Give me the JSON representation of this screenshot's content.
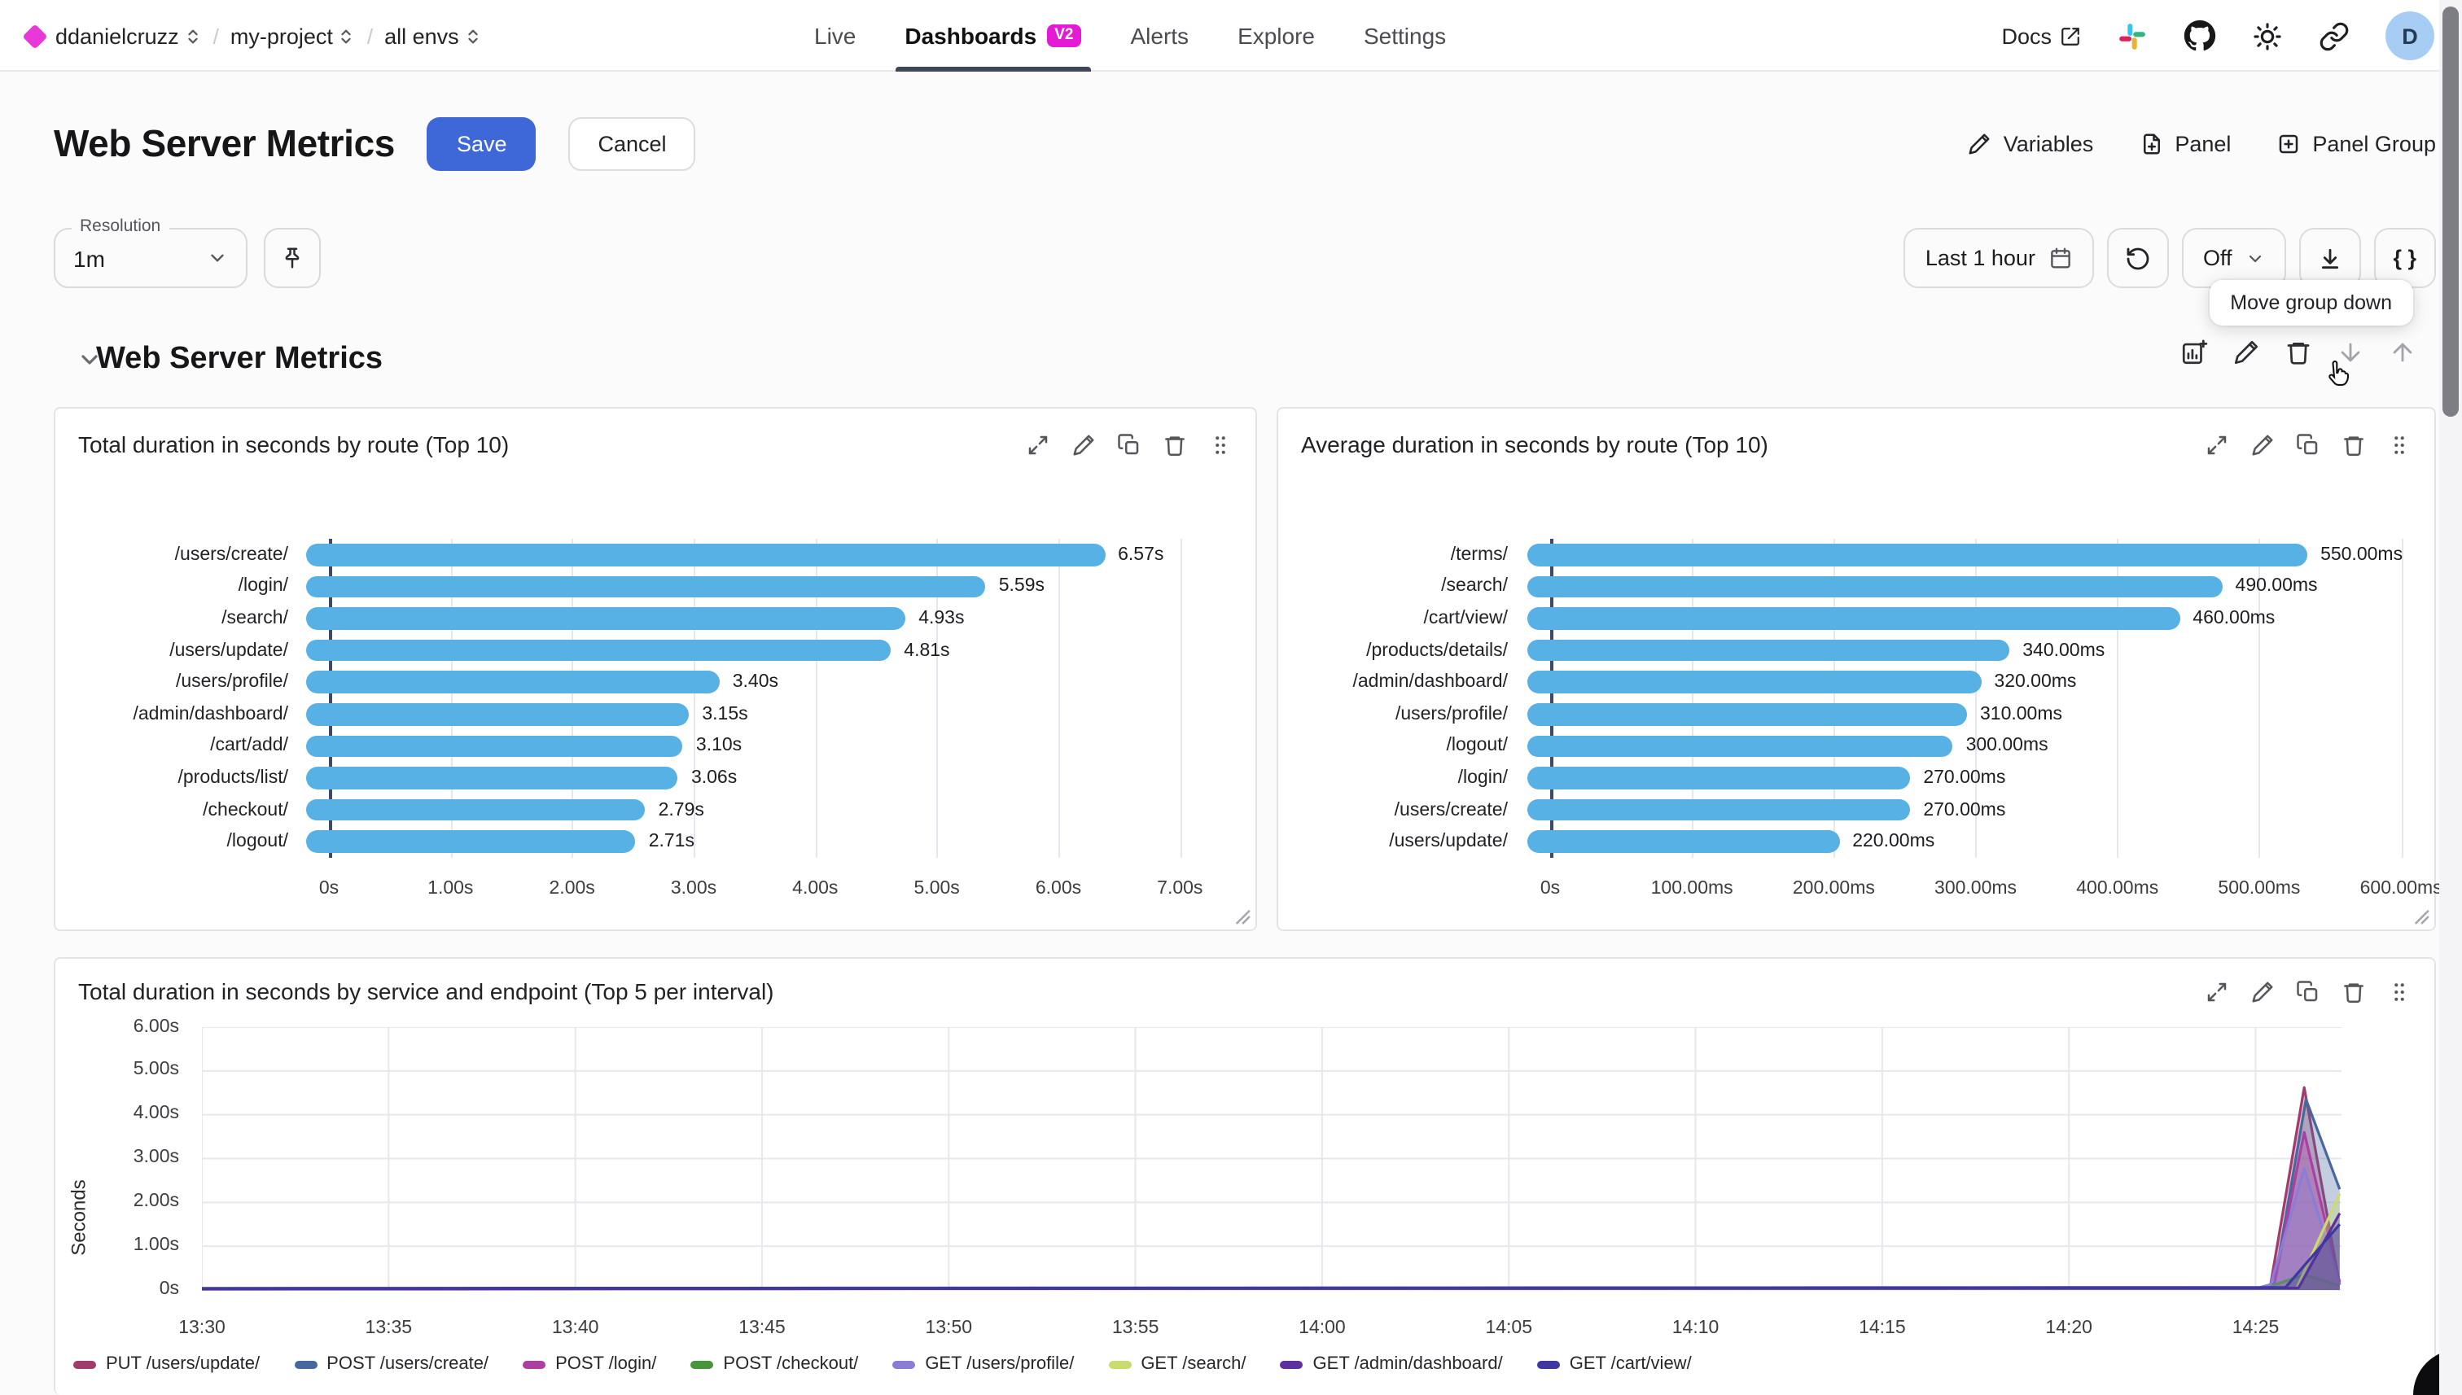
{
  "header": {
    "org": "ddanielcruzz",
    "project": "my-project",
    "env": "all envs",
    "slash": "/",
    "nav": [
      {
        "label": "Live"
      },
      {
        "label": "Dashboards",
        "badge": "V2"
      },
      {
        "label": "Alerts"
      },
      {
        "label": "Explore"
      },
      {
        "label": "Settings"
      }
    ],
    "docs_label": "Docs",
    "avatar_initial": "D"
  },
  "toolbar": {
    "title": "Web Server Metrics",
    "save_label": "Save",
    "cancel_label": "Cancel",
    "variables_label": "Variables",
    "panel_label": "Panel",
    "panel_group_label": "Panel Group"
  },
  "controls": {
    "resolution_label": "Resolution",
    "resolution_value": "1m",
    "time_range_label": "Last 1 hour",
    "auto_refresh_value": "Off",
    "braces_label": "{ }",
    "tooltip_text": "Move group down"
  },
  "group": {
    "title": "Web Server Metrics"
  },
  "colors": {
    "accent_blue": "#3e68d8",
    "badge_magenta": "#e41ad5",
    "brand_magenta": "#e838d8",
    "bar_blue": "#58b1e4"
  },
  "chart_data": [
    {
      "type": "bar",
      "orientation": "horizontal",
      "title": "Total duration in seconds by route (Top 10)",
      "categories": [
        "/users/create/",
        "/login/",
        "/search/",
        "/users/update/",
        "/users/profile/",
        "/admin/dashboard/",
        "/cart/add/",
        "/products/list/",
        "/checkout/",
        "/logout/"
      ],
      "values": [
        6.57,
        5.59,
        4.93,
        4.81,
        3.4,
        3.15,
        3.1,
        3.06,
        2.79,
        2.71
      ],
      "value_labels": [
        "6.57s",
        "5.59s",
        "4.93s",
        "4.81s",
        "3.40s",
        "3.15s",
        "3.10s",
        "3.06s",
        "2.79s",
        "2.71s"
      ],
      "x_tick_labels": [
        "0s",
        "1.00s",
        "2.00s",
        "3.00s",
        "4.00s",
        "5.00s",
        "6.00s",
        "7.00s"
      ],
      "x_tick_values": [
        0,
        1,
        2,
        3,
        4,
        5,
        6,
        7
      ],
      "xmax": 7.5,
      "bar_color": "#58b1e4",
      "grid": true
    },
    {
      "type": "bar",
      "orientation": "horizontal",
      "title": "Average duration in seconds by route (Top 10)",
      "categories": [
        "/terms/",
        "/search/",
        "/cart/view/",
        "/products/details/",
        "/admin/dashboard/",
        "/users/profile/",
        "/logout/",
        "/login/",
        "/users/create/",
        "/users/update/"
      ],
      "values": [
        550,
        490,
        460,
        340,
        320,
        310,
        300,
        270,
        270,
        220
      ],
      "value_labels": [
        "550.00ms",
        "490.00ms",
        "460.00ms",
        "340.00ms",
        "320.00ms",
        "310.00ms",
        "300.00ms",
        "270.00ms",
        "270.00ms",
        "220.00ms"
      ],
      "x_tick_labels": [
        "0s",
        "100.00ms",
        "200.00ms",
        "300.00ms",
        "400.00ms",
        "500.00ms",
        "600.00ms"
      ],
      "x_tick_values": [
        0,
        100,
        200,
        300,
        400,
        500,
        600
      ],
      "xmax": 620,
      "bar_color": "#58b1e4",
      "grid": true
    },
    {
      "type": "line",
      "title": "Total duration in seconds by service and endpoint (Top 5 per interval)",
      "ylabel": "Seconds",
      "y_tick_labels": [
        "0s",
        "1.00s",
        "2.00s",
        "3.00s",
        "4.00s",
        "5.00s",
        "6.00s"
      ],
      "y_tick_values": [
        0,
        1,
        2,
        3,
        4,
        5,
        6
      ],
      "ylim": [
        0,
        6
      ],
      "x_tick_labels": [
        "13:30",
        "13:35",
        "13:40",
        "13:45",
        "13:50",
        "13:55",
        "14:00",
        "14:05",
        "14:10",
        "14:15",
        "14:20",
        "14:25"
      ],
      "x_tick_minutes": [
        0,
        5,
        10,
        15,
        20,
        25,
        30,
        35,
        40,
        45,
        50,
        55
      ],
      "xmax_minutes": 57.3,
      "grid": true,
      "legend_position": "bottom",
      "series": [
        {
          "name": "PUT /users/update/",
          "color": "#a13b6e",
          "points": [
            [
              0,
              0.03
            ],
            [
              55,
              0.03
            ],
            [
              55.4,
              0.12
            ],
            [
              56.3,
              4.62
            ],
            [
              57.25,
              0.12
            ]
          ]
        },
        {
          "name": "POST /users/create/",
          "color": "#46689e",
          "points": [
            [
              0,
              0.03
            ],
            [
              55,
              0.03
            ],
            [
              55.5,
              0.15
            ],
            [
              56.35,
              4.35
            ],
            [
              57.25,
              2.3
            ]
          ]
        },
        {
          "name": "POST /login/",
          "color": "#ab3fa4",
          "points": [
            [
              0,
              0.03
            ],
            [
              55,
              0.03
            ],
            [
              55.5,
              0.12
            ],
            [
              56.3,
              3.6
            ],
            [
              57.25,
              0.18
            ]
          ]
        },
        {
          "name": "POST /checkout/",
          "color": "#47963a",
          "points": [
            [
              0,
              0.03
            ],
            [
              55.2,
              0.03
            ],
            [
              56.3,
              0.35
            ],
            [
              57.25,
              0.1
            ]
          ]
        },
        {
          "name": "GET /users/profile/",
          "color": "#8b7cd8",
          "points": [
            [
              0,
              0.03
            ],
            [
              55,
              0.03
            ],
            [
              55.4,
              0.12
            ],
            [
              56.3,
              2.77
            ],
            [
              57.25,
              0.12
            ]
          ]
        },
        {
          "name": "GET /search/",
          "color": "#cbdc6e",
          "points": [
            [
              0,
              0.02
            ],
            [
              56.1,
              0.05
            ],
            [
              57.25,
              2.2
            ]
          ]
        },
        {
          "name": "GET /admin/dashboard/",
          "color": "#5d2f9f",
          "points": [
            [
              0,
              0.02
            ],
            [
              56.15,
              0.05
            ],
            [
              57.25,
              1.75
            ]
          ]
        },
        {
          "name": "GET /cart/view/",
          "color": "#3d39a1",
          "points": [
            [
              0,
              0.04
            ],
            [
              55.8,
              0.06
            ],
            [
              57.25,
              1.5
            ]
          ]
        }
      ]
    }
  ]
}
